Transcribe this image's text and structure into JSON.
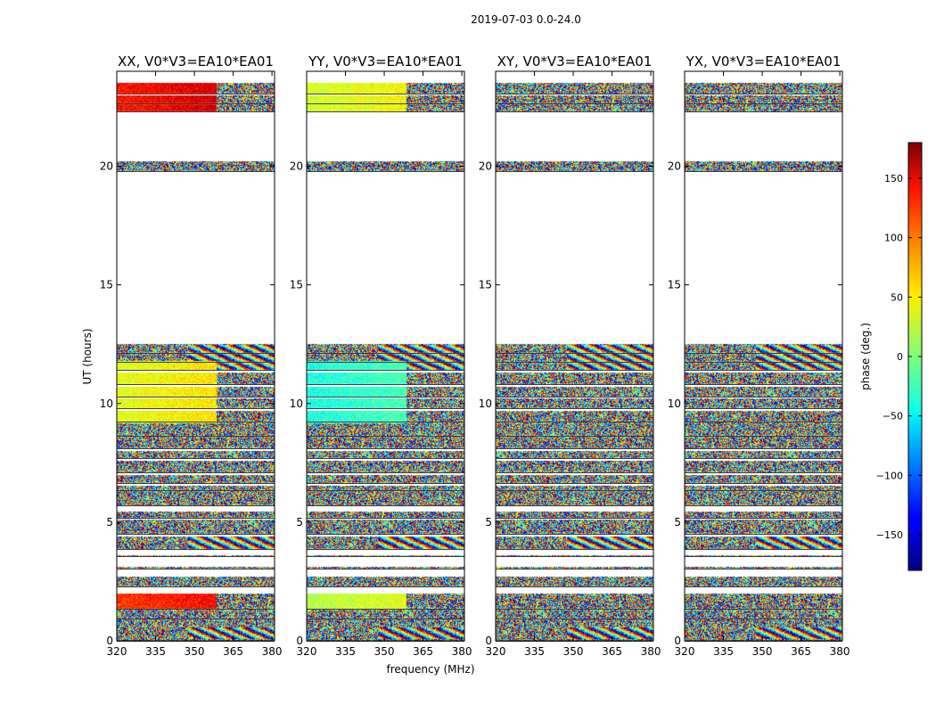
{
  "chart_data": {
    "type": "heatmap",
    "suptitle": "2019-07-03 0.0-24.0",
    "xlabel": "frequency (MHz)",
    "ylabel": "UT (hours)",
    "xlim": [
      320,
      381
    ],
    "ylim": [
      0,
      24
    ],
    "xticks": [
      320,
      335,
      350,
      365,
      380
    ],
    "yticks": [
      0,
      5,
      10,
      15,
      20
    ],
    "panels": [
      {
        "title": "XX, V0*V3=EA10*EA01",
        "pol": "XX"
      },
      {
        "title": "YY, V0*V3=EA10*EA01",
        "pol": "YY"
      },
      {
        "title": "XY, V0*V3=EA10*EA01",
        "pol": "XY"
      },
      {
        "title": "YX, V0*V3=EA10*EA01",
        "pol": "YX"
      }
    ],
    "data_bands_ut_hours": [
      [
        0.0,
        0.9
      ],
      [
        0.95,
        1.3
      ],
      [
        1.35,
        2.0
      ],
      [
        2.3,
        2.7
      ],
      [
        3.05,
        3.1
      ],
      [
        3.55,
        3.6
      ],
      [
        3.85,
        4.4
      ],
      [
        4.5,
        5.1
      ],
      [
        5.2,
        5.45
      ],
      [
        5.7,
        6.3
      ],
      [
        6.35,
        6.55
      ],
      [
        6.65,
        7.0
      ],
      [
        7.1,
        7.6
      ],
      [
        7.7,
        8.0
      ],
      [
        8.1,
        8.6
      ],
      [
        8.65,
        9.2
      ],
      [
        9.25,
        9.7
      ],
      [
        9.8,
        10.2
      ],
      [
        10.3,
        10.7
      ],
      [
        10.8,
        11.3
      ],
      [
        11.4,
        11.7
      ],
      [
        11.75,
        12.1
      ],
      [
        12.15,
        12.5
      ],
      [
        19.8,
        20.2
      ],
      [
        22.3,
        22.6
      ],
      [
        22.65,
        23.0
      ],
      [
        23.05,
        23.5
      ]
    ],
    "colorbar": {
      "label": "phase (deg.)",
      "range": [
        -180,
        180
      ],
      "ticks": [
        -150,
        -100,
        -50,
        0,
        50,
        100,
        150
      ],
      "colormap": "jet"
    }
  }
}
